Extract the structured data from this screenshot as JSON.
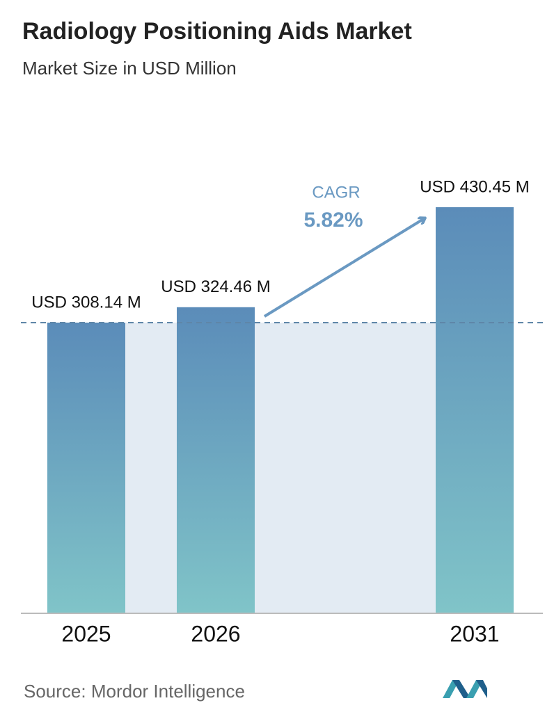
{
  "chart_data": {
    "type": "bar",
    "title": "Radiology Positioning Aids Market",
    "subtitle": "Market Size in USD Million",
    "categories": [
      "2025",
      "2026",
      "2031"
    ],
    "values": [
      308.14,
      324.46,
      430.45
    ],
    "value_labels": [
      "USD 308.14 M",
      "USD 324.46 M",
      "USD 430.45 M"
    ],
    "color_top": "#5b8cb9",
    "color_bottom": "#80c4c8",
    "annotation": {
      "label": "CAGR",
      "value": "5.82%"
    },
    "source": "Source:  Mordor Intelligence"
  }
}
